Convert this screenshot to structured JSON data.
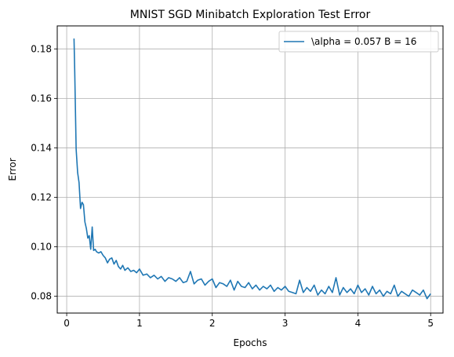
{
  "chart_data": {
    "type": "line",
    "title": "MNIST SGD Minibatch Exploration Test Error",
    "xlabel": "Epochs",
    "ylabel": "Error",
    "xlim": [
      -0.13,
      5.17
    ],
    "ylim": [
      0.0732,
      0.1893
    ],
    "grid": true,
    "legend_position": "top-right",
    "x_ticks": [
      {
        "value": 0,
        "label": "0"
      },
      {
        "value": 1,
        "label": "1"
      },
      {
        "value": 2,
        "label": "2"
      },
      {
        "value": 3,
        "label": "3"
      },
      {
        "value": 4,
        "label": "4"
      },
      {
        "value": 5,
        "label": "5"
      }
    ],
    "y_ticks": [
      {
        "value": 0.08,
        "label": "0.08"
      },
      {
        "value": 0.1,
        "label": "0.10"
      },
      {
        "value": 0.12,
        "label": "0.12"
      },
      {
        "value": 0.14,
        "label": "0.14"
      },
      {
        "value": 0.16,
        "label": "0.16"
      },
      {
        "value": 0.18,
        "label": "0.18"
      }
    ],
    "series": [
      {
        "name": "\\alpha = 0.057 B = 16",
        "color": "#1f77b4",
        "x": [
          0.1,
          0.11,
          0.13,
          0.15,
          0.17,
          0.19,
          0.21,
          0.23,
          0.25,
          0.27,
          0.29,
          0.31,
          0.33,
          0.35,
          0.37,
          0.39,
          0.41,
          0.44,
          0.47,
          0.5,
          0.53,
          0.56,
          0.59,
          0.62,
          0.65,
          0.68,
          0.71,
          0.74,
          0.77,
          0.8,
          0.84,
          0.88,
          0.92,
          0.96,
          1.0,
          1.05,
          1.1,
          1.15,
          1.2,
          1.25,
          1.3,
          1.35,
          1.4,
          1.45,
          1.5,
          1.55,
          1.6,
          1.65,
          1.7,
          1.75,
          1.8,
          1.85,
          1.9,
          1.95,
          2.0,
          2.05,
          2.1,
          2.15,
          2.2,
          2.25,
          2.3,
          2.35,
          2.4,
          2.45,
          2.5,
          2.55,
          2.6,
          2.65,
          2.7,
          2.75,
          2.8,
          2.85,
          2.9,
          2.95,
          3.0,
          3.05,
          3.1,
          3.15,
          3.2,
          3.25,
          3.3,
          3.35,
          3.4,
          3.45,
          3.5,
          3.55,
          3.6,
          3.65,
          3.7,
          3.75,
          3.8,
          3.85,
          3.9,
          3.95,
          4.0,
          4.05,
          4.1,
          4.15,
          4.2,
          4.25,
          4.3,
          4.35,
          4.4,
          4.45,
          4.5,
          4.55,
          4.6,
          4.65,
          4.7,
          4.75,
          4.8,
          4.85,
          4.9,
          4.95,
          5.0
        ],
        "values": [
          0.1842,
          0.171,
          0.1395,
          0.13,
          0.126,
          0.1155,
          0.118,
          0.117,
          0.11,
          0.1075,
          0.1035,
          0.1045,
          0.099,
          0.108,
          0.0985,
          0.099,
          0.098,
          0.0975,
          0.098,
          0.0965,
          0.0955,
          0.0935,
          0.095,
          0.0955,
          0.093,
          0.0945,
          0.092,
          0.091,
          0.0925,
          0.0905,
          0.0915,
          0.09,
          0.0905,
          0.0895,
          0.091,
          0.0885,
          0.089,
          0.0875,
          0.0885,
          0.087,
          0.088,
          0.086,
          0.0875,
          0.087,
          0.086,
          0.0875,
          0.0855,
          0.086,
          0.09,
          0.085,
          0.0865,
          0.087,
          0.0845,
          0.086,
          0.087,
          0.0835,
          0.0855,
          0.085,
          0.084,
          0.0865,
          0.0825,
          0.086,
          0.084,
          0.0835,
          0.0855,
          0.083,
          0.0845,
          0.0825,
          0.084,
          0.083,
          0.0845,
          0.082,
          0.0835,
          0.0825,
          0.084,
          0.082,
          0.0815,
          0.081,
          0.0865,
          0.0815,
          0.0835,
          0.082,
          0.0845,
          0.0805,
          0.0825,
          0.081,
          0.084,
          0.0815,
          0.0875,
          0.0805,
          0.0835,
          0.0815,
          0.083,
          0.081,
          0.0845,
          0.0815,
          0.083,
          0.0805,
          0.084,
          0.081,
          0.0825,
          0.08,
          0.082,
          0.081,
          0.0845,
          0.08,
          0.082,
          0.081,
          0.08,
          0.0825,
          0.0815,
          0.0805,
          0.0825,
          0.079,
          0.081
        ]
      }
    ]
  }
}
